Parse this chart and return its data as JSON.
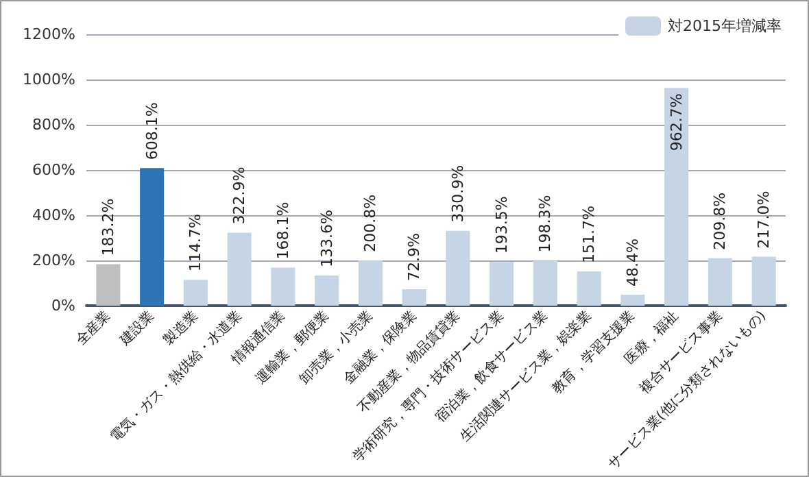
{
  "chart_data": {
    "type": "bar",
    "categories": [
      "全産業",
      "建設業",
      "製造業",
      "電気・ガス・熱供給・水道業",
      "情報通信業",
      "運輸業，郵便業",
      "卸売業，小売業",
      "金融業，保険業",
      "不動産業，物品賃貸業",
      "学術研究，専門・技術サービス業",
      "宿泊業，飲食サービス業",
      "生活関連サービス業，娯楽業",
      "教育，学習支援業",
      "医療，福祉",
      "複合サービス事業",
      "サービス業(他に分類されないもの)"
    ],
    "series": [
      {
        "name": "対2015年増減率",
        "color": "#c5d5e6",
        "colors": [
          "#bfbfbf",
          "#2e75b6",
          "#c5d5e6",
          "#c5d5e6",
          "#c5d5e6",
          "#c5d5e6",
          "#c5d5e6",
          "#c5d5e6",
          "#c5d5e6",
          "#c5d5e6",
          "#c5d5e6",
          "#c5d5e6",
          "#c5d5e6",
          "#c5d5e6",
          "#c5d5e6",
          "#c5d5e6"
        ],
        "values": [
          183.2,
          608.1,
          114.7,
          322.9,
          168.1,
          133.6,
          200.8,
          72.9,
          330.9,
          193.5,
          198.3,
          151.7,
          48.4,
          962.7,
          209.8,
          217.0
        ],
        "value_labels": [
          "183.2%",
          "608.1%",
          "114.7%",
          "322.9%",
          "168.1%",
          "133.6%",
          "200.8%",
          "72.9%",
          "330.9%",
          "193.5%",
          "198.3%",
          "151.7%",
          "48.4%",
          "962.7%",
          "209.8%",
          "217.0%"
        ]
      }
    ],
    "ylim": [
      0,
      1200
    ],
    "yticks": [
      {
        "value": 0,
        "label": "0%"
      },
      {
        "value": 200,
        "label": "200%"
      },
      {
        "value": 400,
        "label": "400%"
      },
      {
        "value": 600,
        "label": "600%"
      },
      {
        "value": 800,
        "label": "800%"
      },
      {
        "value": 1000,
        "label": "1000%"
      },
      {
        "value": 1200,
        "label": "1200%"
      }
    ],
    "grid": "y",
    "legend": "top right"
  }
}
